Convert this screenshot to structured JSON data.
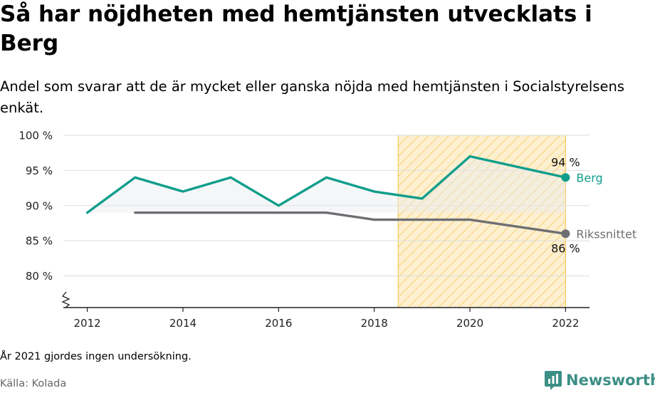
{
  "title": "Så har nöjdheten med hemtjänsten utvecklats i Berg",
  "subtitle": "Andel som svarar att de är mycket eller ganska nöjda med hemtjänsten i Socialstyrelsens enkät.",
  "note": "År 2021 gjordes ingen undersökning.",
  "source": "Källa: Kolada",
  "brand": {
    "name": "Newsworthy",
    "color": "#3c8f86"
  },
  "chart_data": {
    "type": "line",
    "x": [
      2012,
      2013,
      2014,
      2015,
      2016,
      2017,
      2018,
      2019,
      2020,
      2022
    ],
    "x_ticks": [
      "2012",
      "2014",
      "2016",
      "2018",
      "2020",
      "2022"
    ],
    "y_ticks": [
      "100 %",
      "95 %",
      "90 %",
      "85 %",
      "80 %"
    ],
    "ylim": [
      75.5,
      100
    ],
    "xlim": [
      2011.5,
      2022.5
    ],
    "grid": true,
    "axis_break": true,
    "highlight_range": [
      2018.5,
      2022
    ],
    "series": [
      {
        "name": "Berg",
        "color": "#109e8c",
        "x": [
          2012,
          2013,
          2014,
          2015,
          2016,
          2017,
          2018,
          2019,
          2020,
          2022
        ],
        "values": [
          89,
          94,
          92,
          94,
          90,
          94,
          92,
          91,
          97,
          94
        ],
        "end_label": "94 %"
      },
      {
        "name": "Rikssnittet",
        "color": "#6e6e73",
        "x": [
          2013,
          2014,
          2015,
          2016,
          2017,
          2018,
          2019,
          2020,
          2022
        ],
        "values": [
          89,
          89,
          89,
          89,
          89,
          88,
          88,
          88,
          86
        ],
        "end_label": "86 %"
      }
    ]
  }
}
